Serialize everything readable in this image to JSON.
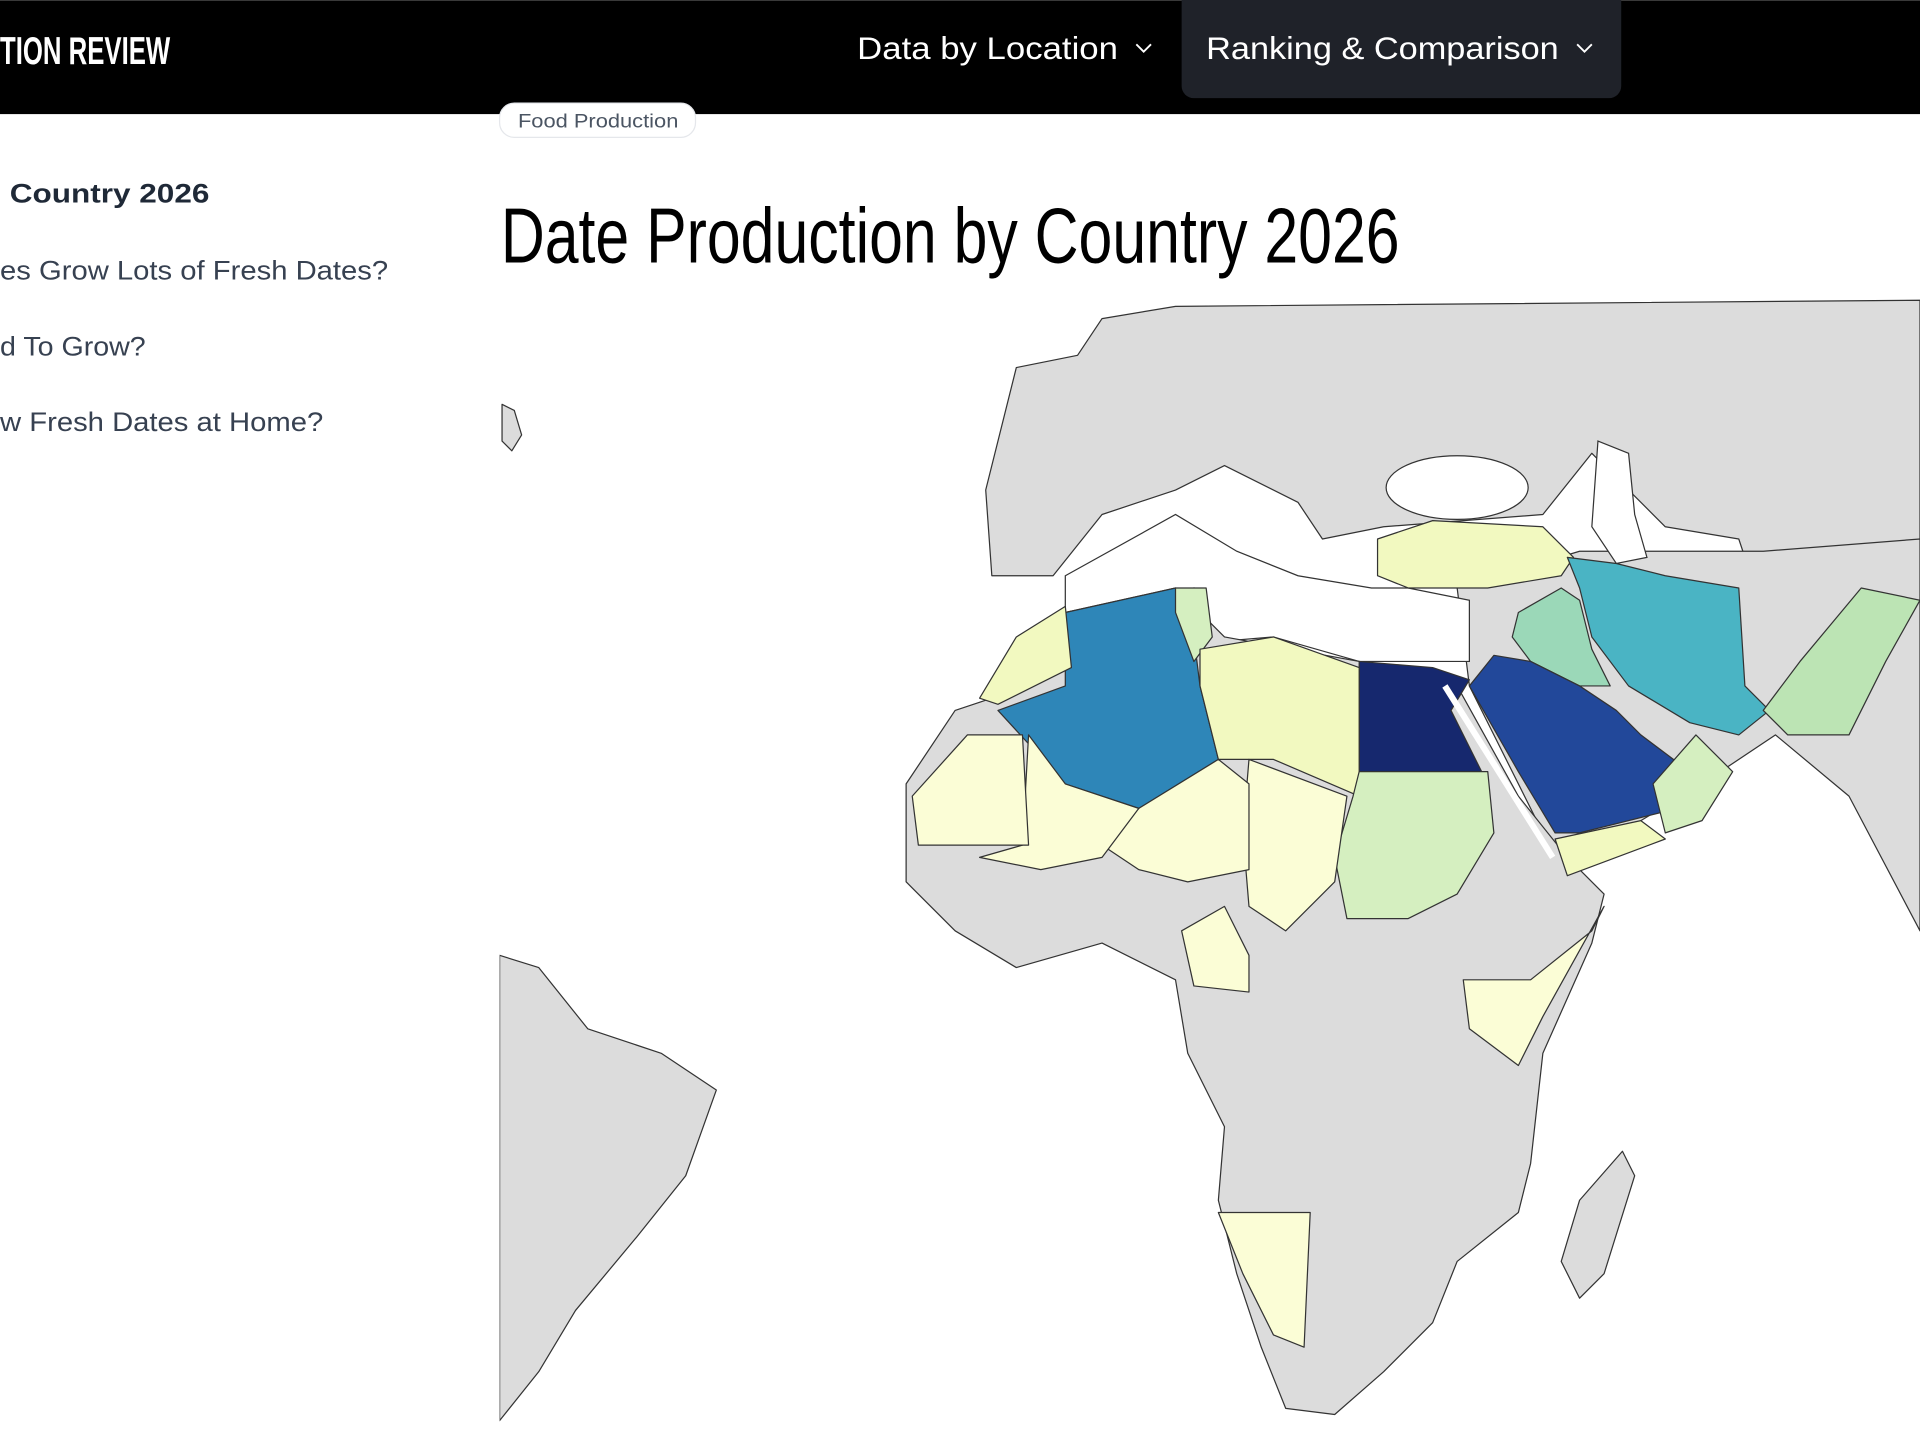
{
  "header": {
    "logo": "TION REVIEW",
    "nav": [
      "Data by Location",
      "Ranking & Comparison"
    ]
  },
  "breadcrumb": "Food Production",
  "sidebar": {
    "items": [
      "Country 2026",
      "es Grow Lots of Fresh Dates?",
      "d To Grow?",
      "w Fresh Dates at Home?"
    ]
  },
  "title": "Date Production by Country 2026"
}
